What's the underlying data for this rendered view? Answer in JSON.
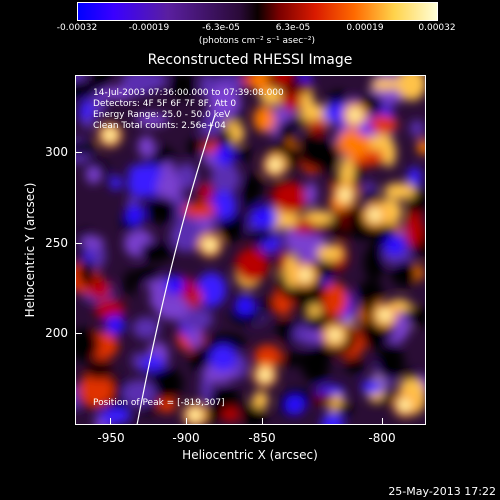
{
  "colorbar": {
    "ticks": [
      "-0.00032",
      "-0.00019",
      "-6.3e-05",
      "6.3e-05",
      "0.00019",
      "0.00032"
    ],
    "units": "(photons cm⁻² s⁻¹ asec⁻²)",
    "gradient_colors": [
      "#0000ff",
      "#5a1fa0",
      "#000000",
      "#d91a00",
      "#ff6a00",
      "#ffffd8"
    ]
  },
  "title": "Reconstructed RHESSI Image",
  "info": {
    "time": "14-Jul-2003 07:36:00.000 to 07:39:08.000",
    "detectors": "Detectors: 4F 5F 6F 7F 8F, Att 0",
    "energy": "Energy Range: 25.0 - 50.0 keV",
    "clean": "Clean     Total counts: 2.56e+04",
    "peak": "Position of Peak = [-819,307]"
  },
  "axes": {
    "xlabel": "Heliocentric X (arcsec)",
    "ylabel": "Heliocentric Y (arcsec)",
    "xlim": [
      -965,
      -775
    ],
    "ylim": [
      145,
      335
    ],
    "xticks": [
      "-950",
      "-900",
      "-850",
      "-800"
    ],
    "yticks": [
      "200",
      "250",
      "300"
    ]
  },
  "timestamp": "25-May-2013 17:22"
}
